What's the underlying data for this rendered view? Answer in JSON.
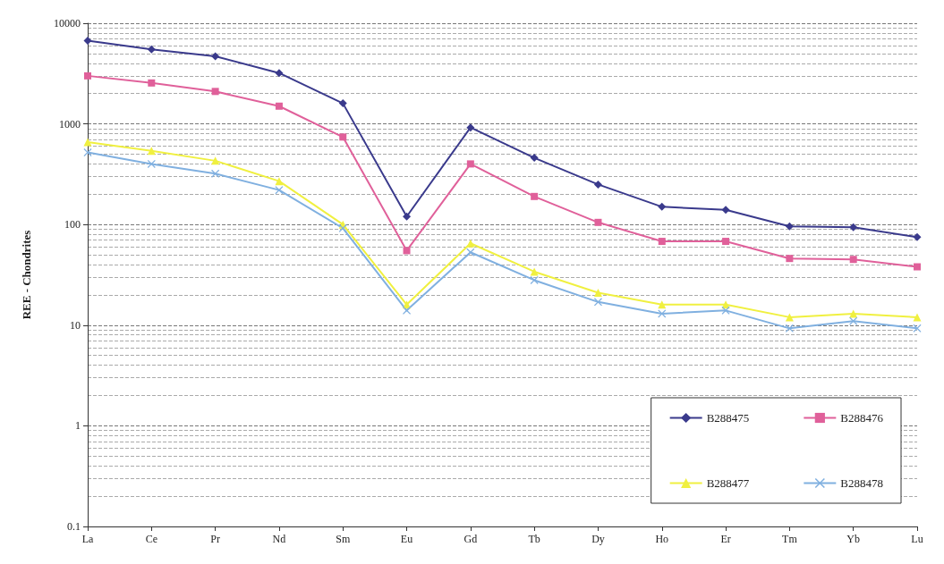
{
  "chart_data": {
    "type": "line",
    "ylabel": "REE - Chondrites",
    "categories": [
      "La",
      "Ce",
      "Pr",
      "Nd",
      "Sm",
      "Eu",
      "Gd",
      "Tb",
      "Dy",
      "Ho",
      "Er",
      "Tm",
      "Yb",
      "Lu"
    ],
    "series": [
      {
        "name": "B288475",
        "color": "#3a3a8c",
        "marker": "diamond",
        "values": [
          6700,
          5500,
          4700,
          3200,
          1600,
          120,
          920,
          460,
          250,
          150,
          140,
          96,
          94,
          75
        ]
      },
      {
        "name": "B288476",
        "color": "#e0609a",
        "marker": "square",
        "values": [
          3000,
          2550,
          2100,
          1500,
          740,
          55,
          400,
          190,
          105,
          68,
          68,
          46,
          45,
          38
        ]
      },
      {
        "name": "B288477",
        "color": "#f0f040",
        "marker": "triangle",
        "values": [
          660,
          540,
          430,
          270,
          100,
          16,
          65,
          34,
          21,
          16,
          16,
          12,
          13,
          12
        ]
      },
      {
        "name": "B288478",
        "color": "#80b0e0",
        "marker": "cross",
        "values": [
          520,
          400,
          320,
          220,
          92,
          14,
          53,
          28,
          17,
          13,
          14,
          9.3,
          11,
          9.3
        ]
      }
    ],
    "log": "y",
    "ylim": [
      0.1,
      10000
    ],
    "yticks": [
      0.1,
      1,
      10,
      100,
      1000,
      10000
    ],
    "grid": "y",
    "legend": "bottom right",
    "line_style": "solid"
  }
}
